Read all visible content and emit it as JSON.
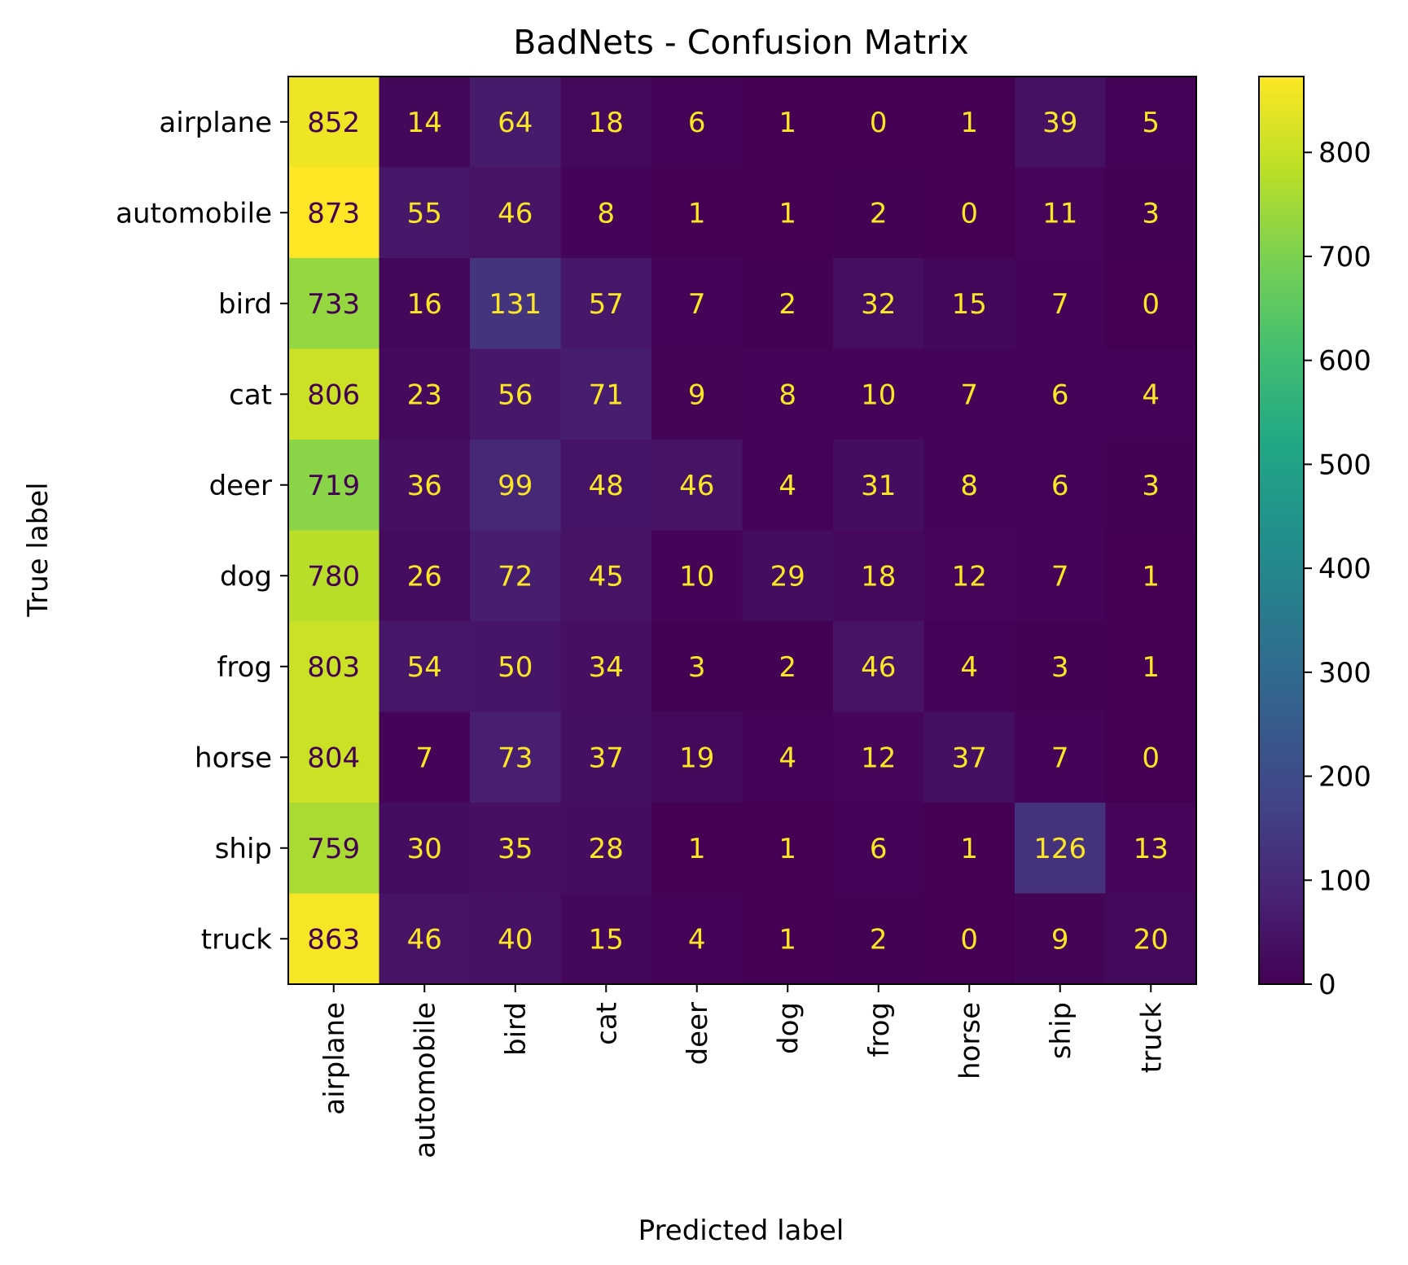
{
  "chart_data": {
    "type": "heatmap",
    "title": "BadNets - Confusion Matrix",
    "xlabel": "Predicted label",
    "ylabel": "True label",
    "x_categories": [
      "airplane",
      "automobile",
      "bird",
      "cat",
      "deer",
      "dog",
      "frog",
      "horse",
      "ship",
      "truck"
    ],
    "y_categories": [
      "airplane",
      "automobile",
      "bird",
      "cat",
      "deer",
      "dog",
      "frog",
      "horse",
      "ship",
      "truck"
    ],
    "values": [
      [
        852,
        14,
        64,
        18,
        6,
        1,
        0,
        1,
        39,
        5
      ],
      [
        873,
        55,
        46,
        8,
        1,
        1,
        2,
        0,
        11,
        3
      ],
      [
        733,
        16,
        131,
        57,
        7,
        2,
        32,
        15,
        7,
        0
      ],
      [
        806,
        23,
        56,
        71,
        9,
        8,
        10,
        7,
        6,
        4
      ],
      [
        719,
        36,
        99,
        48,
        46,
        4,
        31,
        8,
        6,
        3
      ],
      [
        780,
        26,
        72,
        45,
        10,
        29,
        18,
        12,
        7,
        1
      ],
      [
        803,
        54,
        50,
        34,
        3,
        2,
        46,
        4,
        3,
        1
      ],
      [
        804,
        7,
        73,
        37,
        19,
        4,
        12,
        37,
        7,
        0
      ],
      [
        759,
        30,
        35,
        28,
        1,
        1,
        6,
        1,
        126,
        13
      ],
      [
        863,
        46,
        40,
        15,
        4,
        1,
        2,
        0,
        9,
        20
      ]
    ],
    "colormap": "viridis",
    "colorbar": {
      "range": [
        0,
        873
      ],
      "ticks": [
        0,
        100,
        200,
        300,
        400,
        500,
        600,
        700,
        800
      ],
      "placement": "right"
    },
    "text_colors": {
      "light": "#fde725",
      "dark": "#440154"
    },
    "grid": false
  }
}
